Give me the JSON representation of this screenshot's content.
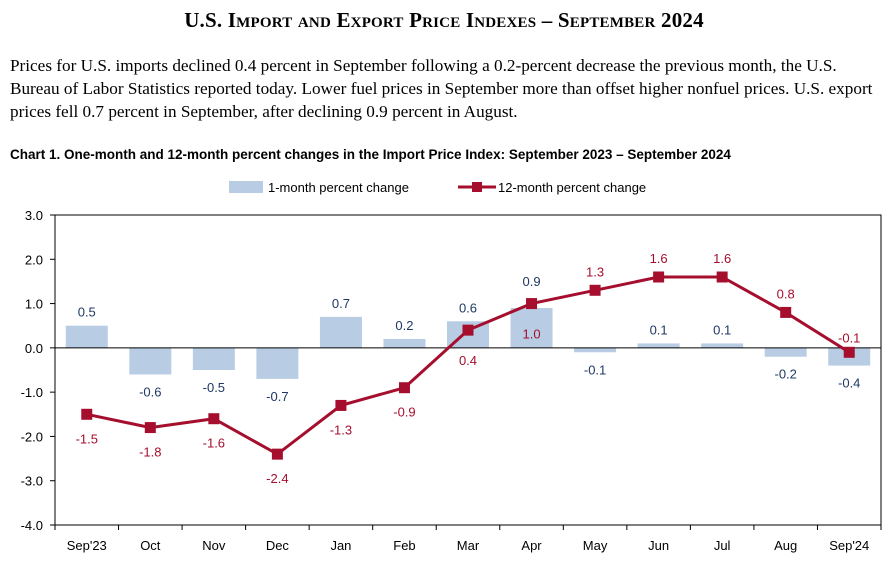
{
  "header": {
    "title": "U.S. Import and Export Price Indexes – September 2024",
    "intro": "Prices for U.S. imports declined 0.4 percent in September following a 0.2-percent decrease the previous month, the U.S. Bureau of Labor Statistics reported today. Lower fuel prices in September more than offset higher nonfuel prices. U.S. export prices fell 0.7 percent in September, after declining 0.9 percent in August."
  },
  "colors": {
    "bar": "#b8cce4",
    "line": "#a50f2d",
    "bar_label": "#1f3864",
    "line_label": "#a50f2d"
  },
  "chart_data": {
    "type": "bar",
    "title": "Chart 1. One-month and 12-month percent changes in the Import Price Index: September 2023 – September 2024",
    "categories": [
      "Sep'23",
      "Oct",
      "Nov",
      "Dec",
      "Jan",
      "Feb",
      "Mar",
      "Apr",
      "May",
      "Jun",
      "Jul",
      "Aug",
      "Sep'24"
    ],
    "series": [
      {
        "name": "1-month percent change",
        "type": "bar",
        "values": [
          0.5,
          -0.6,
          -0.5,
          -0.7,
          0.7,
          0.2,
          0.6,
          0.9,
          -0.1,
          0.1,
          0.1,
          -0.2,
          -0.4
        ],
        "labels": [
          "0.5",
          "-0.6",
          "-0.5",
          "-0.7",
          "0.7",
          "0.2",
          "0.6",
          "0.9",
          "-0.1",
          "0.1",
          "0.1",
          "-0.2",
          "-0.4"
        ]
      },
      {
        "name": "12-month percent change",
        "type": "line",
        "values": [
          -1.5,
          -1.8,
          -1.6,
          -2.4,
          -1.3,
          -0.9,
          0.4,
          1.0,
          1.3,
          1.6,
          1.6,
          0.8,
          -0.1
        ],
        "labels": [
          "-1.5",
          "-1.8",
          "-1.6",
          "-2.4",
          "-1.3",
          "-0.9",
          "0.4",
          "1.0",
          "1.3",
          "1.6",
          "1.6",
          "0.8",
          "-0.1"
        ]
      }
    ],
    "ylim": [
      -4.0,
      3.0
    ],
    "yticks": [
      "3.0",
      "2.0",
      "1.0",
      "0.0",
      "-1.0",
      "-2.0",
      "-3.0",
      "-4.0"
    ],
    "xlabel": "",
    "ylabel": "",
    "legend_position": "top-center"
  }
}
